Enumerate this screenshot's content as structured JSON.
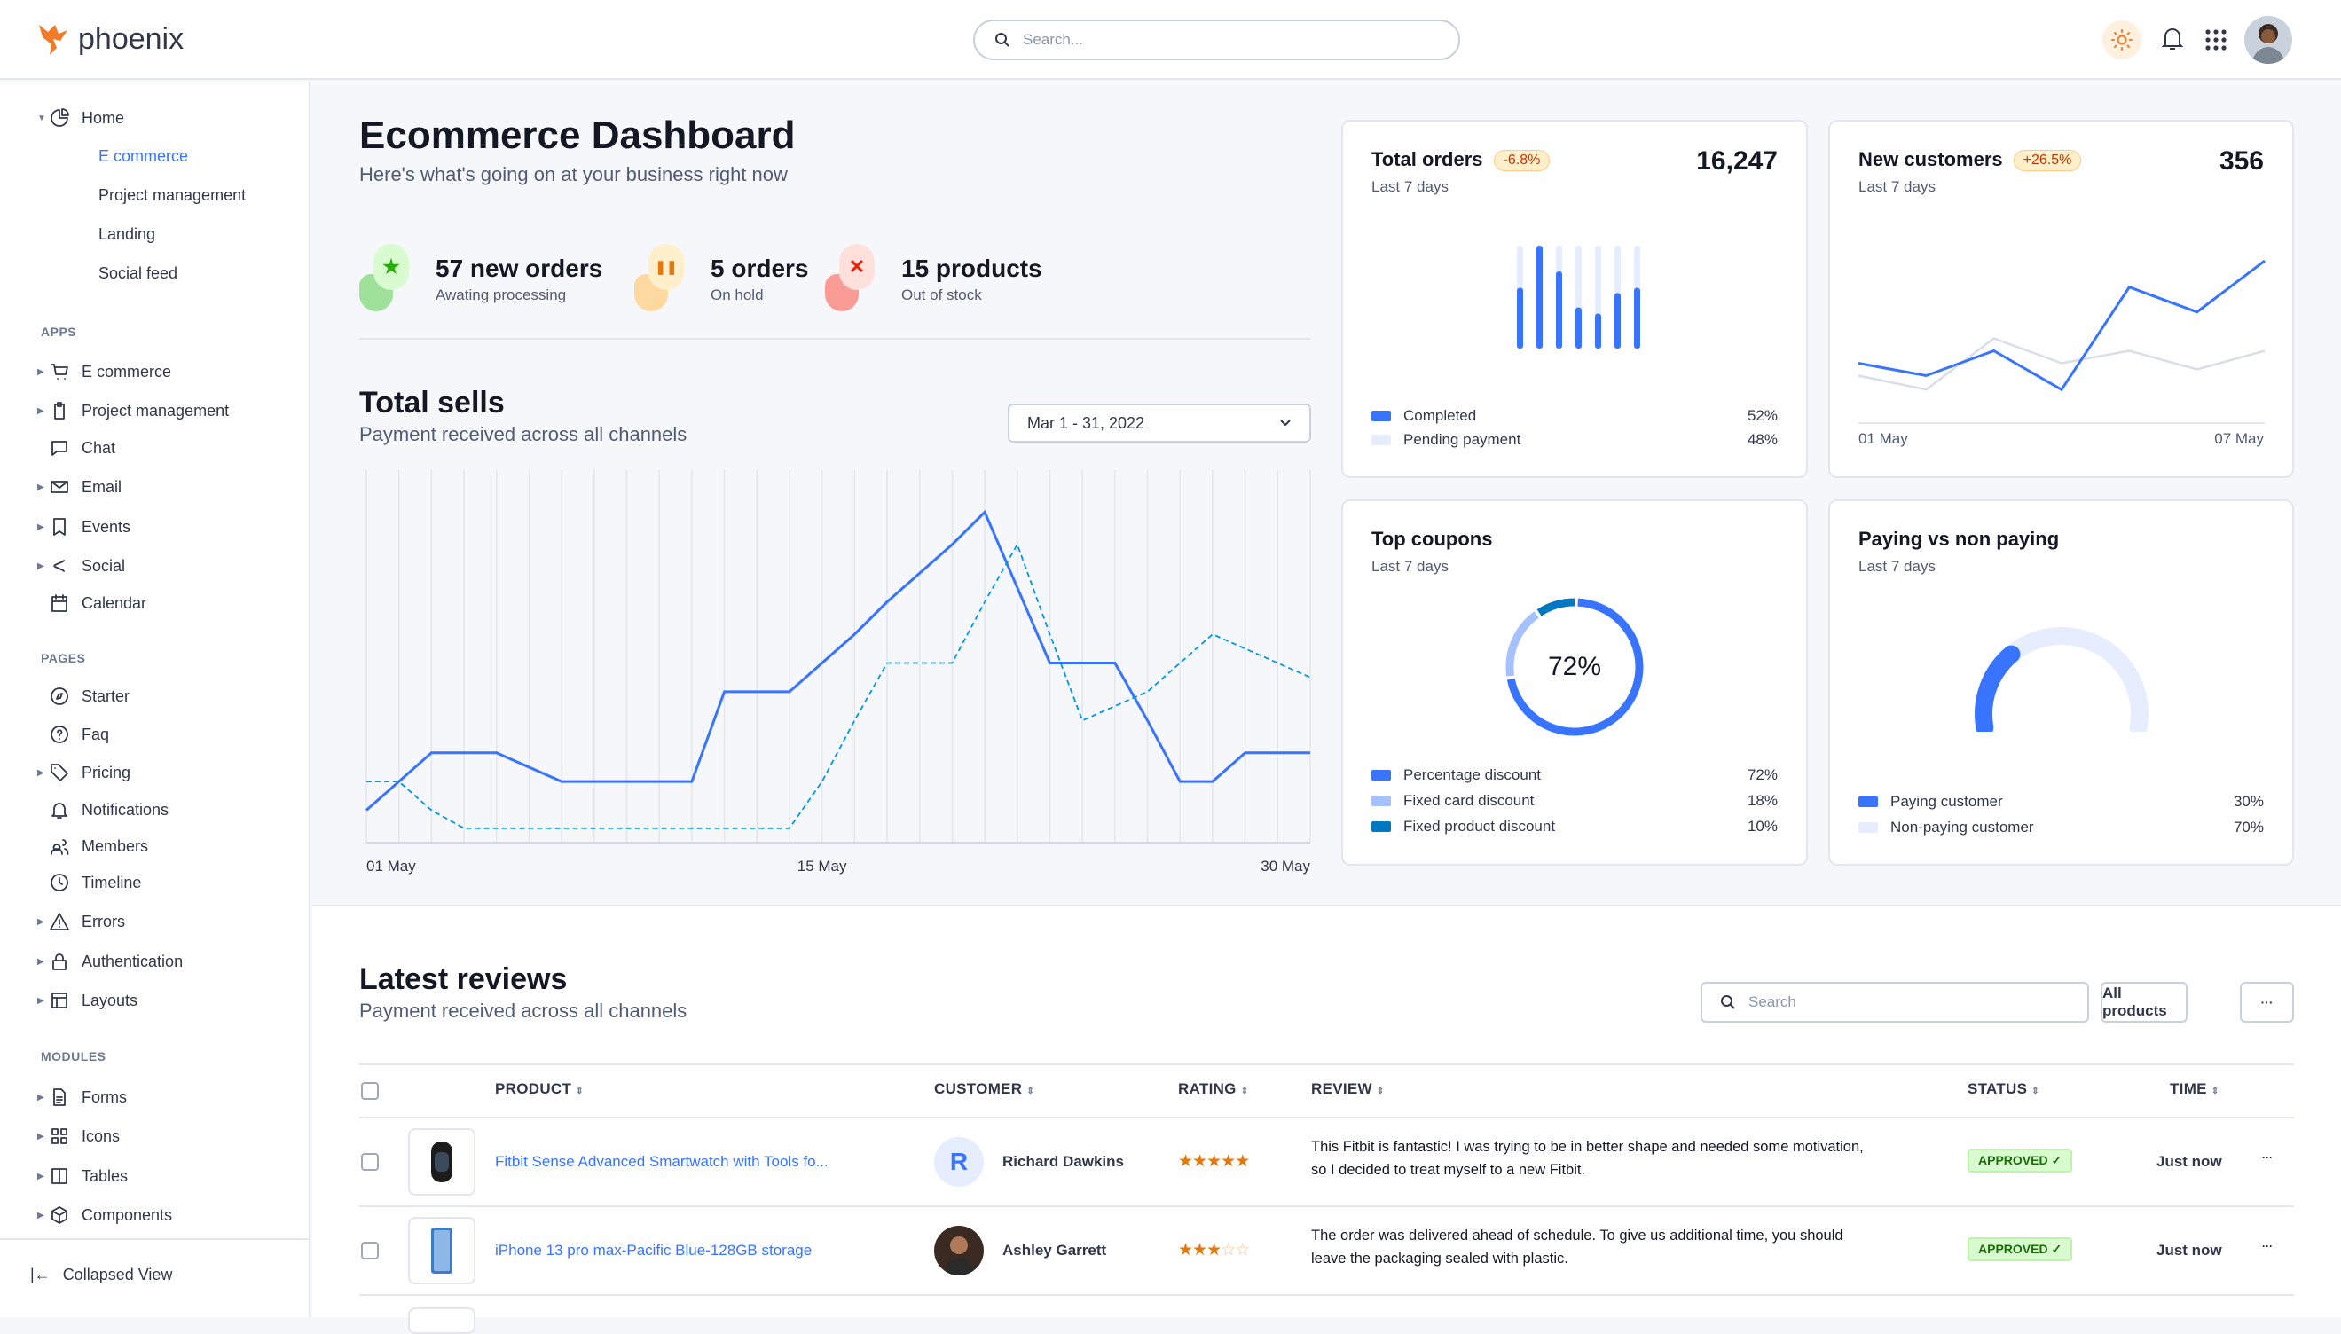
{
  "header": {
    "logo_text": "phoenix",
    "search_placeholder": "Search...",
    "icons": [
      "sun-icon",
      "bell-icon",
      "apps-grid-icon",
      "user-avatar"
    ]
  },
  "sidebar": {
    "home": {
      "label": "Home",
      "icon": "pie-chart-icon",
      "children": [
        "E commerce",
        "Project management",
        "Landing",
        "Social feed"
      ],
      "active": "E commerce"
    },
    "sections": [
      {
        "title": "APPS",
        "items": [
          {
            "label": "E commerce",
            "icon": "cart-icon",
            "caret": true
          },
          {
            "label": "Project management",
            "icon": "clipboard-icon",
            "caret": true
          },
          {
            "label": "Chat",
            "icon": "chat-icon",
            "caret": false
          },
          {
            "label": "Email",
            "icon": "mail-icon",
            "caret": true
          },
          {
            "label": "Events",
            "icon": "bookmark-icon",
            "caret": true
          },
          {
            "label": "Social",
            "icon": "share-icon",
            "caret": true
          },
          {
            "label": "Calendar",
            "icon": "calendar-icon",
            "caret": false
          }
        ]
      },
      {
        "title": "PAGES",
        "items": [
          {
            "label": "Starter",
            "icon": "compass-icon",
            "caret": false
          },
          {
            "label": "Faq",
            "icon": "help-circle-icon",
            "caret": false
          },
          {
            "label": "Pricing",
            "icon": "tag-icon",
            "caret": true
          },
          {
            "label": "Notifications",
            "icon": "bell-icon",
            "caret": false
          },
          {
            "label": "Members",
            "icon": "users-icon",
            "caret": false
          },
          {
            "label": "Timeline",
            "icon": "clock-icon",
            "caret": false
          },
          {
            "label": "Errors",
            "icon": "alert-triangle-icon",
            "caret": true
          },
          {
            "label": "Authentication",
            "icon": "lock-icon",
            "caret": true
          },
          {
            "label": "Layouts",
            "icon": "layout-icon",
            "caret": true
          }
        ]
      },
      {
        "title": "MODULES",
        "items": [
          {
            "label": "Forms",
            "icon": "file-text-icon",
            "caret": true
          },
          {
            "label": "Icons",
            "icon": "grid-icon",
            "caret": true
          },
          {
            "label": "Tables",
            "icon": "columns-icon",
            "caret": true
          },
          {
            "label": "Components",
            "icon": "package-icon",
            "caret": true
          }
        ]
      }
    ],
    "collapse_label": "Collapsed View"
  },
  "page": {
    "title": "Ecommerce Dashboard",
    "subtitle": "Here's what's going on at your business right now"
  },
  "stats": [
    {
      "value": "57 new orders",
      "label": "Awating processing",
      "icon": "star-icon",
      "color": "#25b003",
      "bg": "#d9fbd0",
      "blob": "#9fe09a"
    },
    {
      "value": "5 orders",
      "label": "On hold",
      "icon": "pause-icon",
      "color": "#e5780b",
      "bg": "#ffefca",
      "blob": "#fdd9a0"
    },
    {
      "value": "15 products",
      "label": "Out of stock",
      "icon": "x-icon",
      "color": "#ec1f00",
      "bg": "#ffe0db",
      "blob": "#fa9c95"
    }
  ],
  "total_sells": {
    "title": "Total sells",
    "subtitle": "Payment received across all channels",
    "date_range": "Mar 1 - 31, 2022"
  },
  "chart_data": [
    {
      "type": "line",
      "title": "Total sells",
      "x_tick_labels": [
        "01 May",
        "15 May",
        "30 May"
      ],
      "x": [
        "01 May",
        "02 May",
        "03 May",
        "04 May",
        "05 May",
        "06 May",
        "07 May",
        "08 May",
        "09 May",
        "10 May",
        "11 May",
        "12 May",
        "13 May",
        "14 May",
        "15 May",
        "16 May",
        "17 May",
        "18 May",
        "19 May",
        "20 May",
        "21 May",
        "22 May",
        "23 May",
        "24 May",
        "25 May",
        "26 May",
        "27 May",
        "28 May",
        "29 May",
        "30 May"
      ],
      "ylim": [
        0,
        100
      ],
      "grid": "vertical",
      "series": [
        {
          "style": "solid",
          "color": "#3874ff",
          "values": [
            9,
            17,
            25,
            25,
            25,
            21,
            17,
            17,
            17,
            17,
            17,
            42,
            42,
            42,
            50,
            58,
            67,
            75,
            83,
            92,
            71,
            50,
            50,
            50,
            34,
            17,
            17,
            25,
            25,
            25
          ]
        },
        {
          "style": "dashed",
          "color": "#0097eb",
          "values": [
            17,
            17,
            9,
            4,
            4,
            4,
            4,
            4,
            4,
            4,
            4,
            4,
            4,
            4,
            17,
            34,
            50,
            50,
            50,
            67,
            83,
            58,
            34,
            38,
            42,
            50,
            58,
            54,
            50,
            46
          ]
        }
      ]
    },
    {
      "type": "bar",
      "title": "Total orders",
      "stacked_background": true,
      "values_percent_of_max": [
        59,
        100,
        75,
        40,
        34,
        54,
        59
      ],
      "color": "#3874ff",
      "bg_color": "#e5edff"
    },
    {
      "type": "line",
      "title": "New customers",
      "x_tick_labels": [
        "01 May",
        "07 May"
      ],
      "ylim": [
        0,
        100
      ],
      "series": [
        {
          "color": "#3874ff",
          "values": [
            34,
            26,
            42,
            17,
            83,
            67,
            100
          ]
        },
        {
          "color": "#d9dde8",
          "values": [
            26,
            17,
            50,
            34,
            42,
            30,
            42
          ]
        }
      ]
    },
    {
      "type": "pie",
      "title": "Top coupons",
      "donut": true,
      "center_label": "72%",
      "slices": [
        {
          "label": "Percentage discount",
          "value": 72,
          "color": "#3874ff"
        },
        {
          "label": "Fixed card discount",
          "value": 18,
          "color": "#a6c1ff"
        },
        {
          "label": "Fixed product discount",
          "value": 10,
          "color": "#0077c2"
        }
      ]
    },
    {
      "type": "pie",
      "title": "Paying vs non paying",
      "gauge": true,
      "slices": [
        {
          "label": "Paying customer",
          "value": 30,
          "color": "#3874ff"
        },
        {
          "label": "Non-paying customer",
          "value": 70,
          "color": "#e5edff"
        }
      ]
    }
  ],
  "cards": {
    "total_orders": {
      "title": "Total orders",
      "badge": "-6.8%",
      "sub": "Last 7 days",
      "value": "16,247",
      "legend": [
        {
          "label": "Completed",
          "pct": "52%",
          "color": "#3874ff"
        },
        {
          "label": "Pending payment",
          "pct": "48%",
          "color": "#e5edff"
        }
      ]
    },
    "new_customers": {
      "title": "New customers",
      "badge": "+26.5%",
      "sub": "Last 7 days",
      "value": "356",
      "x_start": "01 May",
      "x_end": "07 May"
    },
    "top_coupons": {
      "title": "Top coupons",
      "sub": "Last 7 days",
      "center": "72%",
      "legend": [
        {
          "label": "Percentage discount",
          "pct": "72%",
          "color": "#3874ff"
        },
        {
          "label": "Fixed card discount",
          "pct": "18%",
          "color": "#a6c1ff"
        },
        {
          "label": "Fixed product discount",
          "pct": "10%",
          "color": "#0077c2"
        }
      ]
    },
    "paying": {
      "title": "Paying vs non paying",
      "sub": "Last 7 days",
      "legend": [
        {
          "label": "Paying customer",
          "pct": "30%",
          "color": "#3874ff"
        },
        {
          "label": "Non-paying customer",
          "pct": "70%",
          "color": "#e5edff"
        }
      ]
    }
  },
  "reviews": {
    "title": "Latest reviews",
    "subtitle": "Payment received across all channels",
    "search_placeholder": "Search",
    "filter_label": "All products",
    "more_label": "···",
    "columns": [
      "PRODUCT",
      "CUSTOMER",
      "RATING",
      "REVIEW",
      "STATUS",
      "TIME"
    ],
    "rows": [
      {
        "product": "Fitbit Sense Advanced Smartwatch with Tools fo...",
        "product_icon": "smartwatch-image",
        "customer": "Richard Dawkins",
        "avatar_initial": "R",
        "rating": 5,
        "review": [
          "This Fitbit is fantastic! I was trying to be in better shape and needed some motivation,",
          "so I decided to treat myself to a new Fitbit."
        ],
        "status": "APPROVED ✓",
        "time": "Just now"
      },
      {
        "product": "iPhone 13 pro max-Pacific Blue-128GB storage",
        "product_icon": "phone-image",
        "customer": "Ashley Garrett",
        "avatar_initial": "",
        "rating": 3,
        "review": [
          "The order was delivered ahead of schedule. To give us additional time, you should",
          "leave the packaging sealed with plastic."
        ],
        "status": "APPROVED ✓",
        "time": "Just now"
      }
    ]
  }
}
